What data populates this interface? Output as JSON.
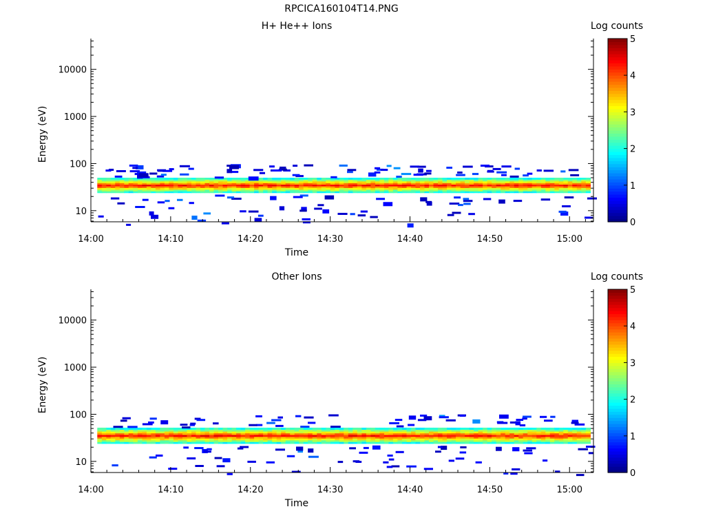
{
  "page_title": "RPCICA160104T14.PNG",
  "chart_data": [
    {
      "type": "heatmap",
      "title": "H+ He++ Ions",
      "xlabel": "Time",
      "ylabel": "Energy (eV)",
      "x_tick_labels": [
        "14:00",
        "14:10",
        "14:20",
        "14:30",
        "14:40",
        "14:50",
        "15:00"
      ],
      "y_tick_labels": [
        "10",
        "100",
        "1000",
        "10000"
      ],
      "y_scale": "log",
      "ylim": [
        5.8,
        45000
      ],
      "xlim_minutes": [
        0,
        63
      ],
      "colorbar": {
        "label": "Log counts",
        "ticks": [
          "0",
          "1",
          "2",
          "3",
          "4",
          "5"
        ],
        "range": [
          0,
          5
        ],
        "colormap": "jet"
      },
      "band": {
        "description_peak_energy_eV": 34,
        "energy_range_eV": [
          24,
          50
        ],
        "peak_log_counts": 4.3
      },
      "scatter_energy_eV": [
        6,
        7,
        9,
        10,
        11,
        13,
        15,
        17,
        20,
        60,
        63,
        68,
        75,
        80,
        85,
        90,
        95
      ]
    },
    {
      "type": "heatmap",
      "title": "Other Ions",
      "xlabel": "Time",
      "ylabel": "Energy (eV)",
      "x_tick_labels": [
        "14:00",
        "14:10",
        "14:20",
        "14:30",
        "14:40",
        "14:50",
        "15:00"
      ],
      "y_tick_labels": [
        "10",
        "100",
        "1000",
        "10000"
      ],
      "y_scale": "log",
      "ylim": [
        5.8,
        45000
      ],
      "xlim_minutes": [
        0,
        63
      ],
      "colorbar": {
        "label": "Log counts",
        "ticks": [
          "0",
          "1",
          "2",
          "3",
          "4",
          "5"
        ],
        "range": [
          0,
          5
        ],
        "colormap": "jet"
      },
      "band": {
        "description_peak_energy_eV": 35,
        "energy_range_eV": [
          24,
          52
        ],
        "peak_log_counts": 4.4
      },
      "scatter_energy_eV": [
        6,
        8,
        10,
        12,
        14,
        17,
        20,
        58,
        62,
        66,
        70,
        75,
        82,
        90
      ]
    }
  ]
}
